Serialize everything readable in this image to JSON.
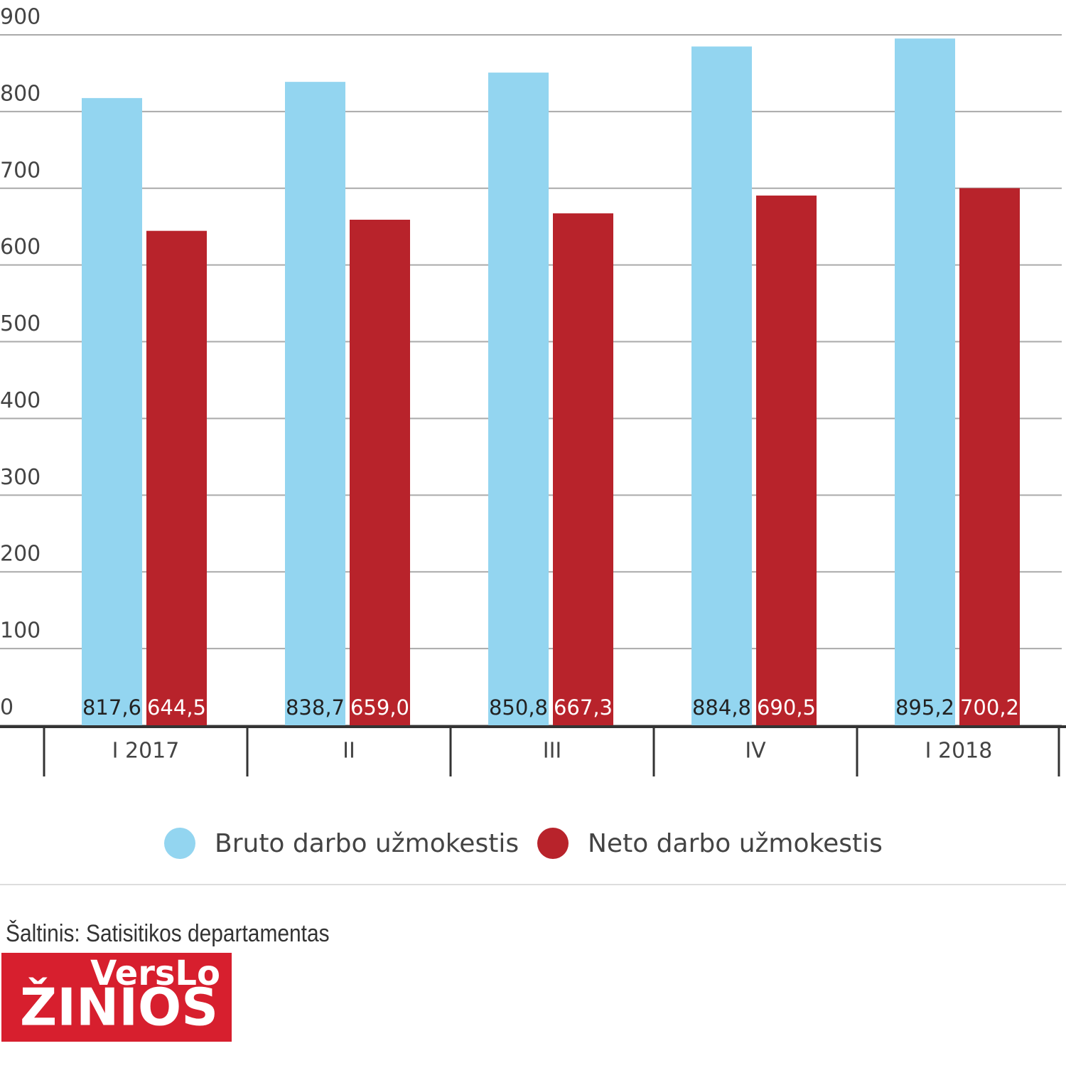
{
  "chart_data": {
    "type": "bar",
    "categories": [
      "I 2017",
      "II",
      "III",
      "IV",
      "I 2018"
    ],
    "series": [
      {
        "name": "Bruto darbo užmokestis",
        "color": "#93d5f0",
        "values": [
          817.6,
          838.7,
          850.8,
          884.8,
          895.2
        ],
        "value_labels": [
          "817,6",
          "838,7",
          "850,8",
          "884,8",
          "895,2"
        ]
      },
      {
        "name": "Neto darbo užmokestis",
        "color": "#b8232b",
        "values": [
          644.5,
          659.0,
          667.3,
          690.5,
          700.2
        ],
        "value_labels": [
          "644,5",
          "659,0",
          "667,3",
          "690,5",
          "700,2"
        ]
      }
    ],
    "ylim": [
      0,
      900
    ],
    "yticks": [
      0,
      100,
      200,
      300,
      400,
      500,
      600,
      700,
      800,
      900
    ],
    "grid": true,
    "source": "Šaltinis: Satisitikos departamentas",
    "logo": [
      "VersLo",
      "ŽINIOS"
    ]
  }
}
